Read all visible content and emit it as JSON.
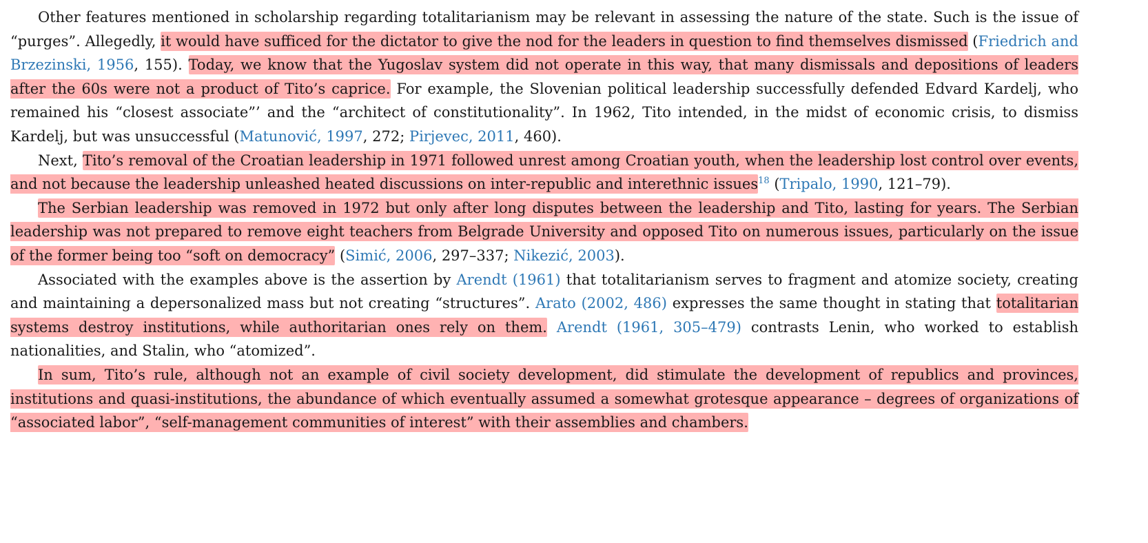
{
  "p1": {
    "s1": "Other features mentioned in scholarship regarding totalitarianism may be relevant in assessing the nature of the state. Such is the issue of “purges”. Allegedly, ",
    "h1": "it would have sufficed for the dictator to give the nod for the leaders in question to find themselves dismissed",
    "s2": " (",
    "c1": "Friedrich and Brzezinski, 1956",
    "s3": ", 155). ",
    "h2": "Today, we know that the Yugoslav system did not operate in this way, that many dismissals and depositions of leaders after the 60s were not a product of Tito’s caprice.",
    "s4": " For example, the Slovenian political leadership successfully defended Edvard Kardelj, who remained his “closest associate”’ and the “architect of constitutionality”. In 1962, Tito intended, in the midst of economic crisis, to dismiss Kardelj, but was unsuccessful (",
    "c2": "Matunović, 1997",
    "s5": ", 272; ",
    "c3": "Pirjevec, 2011",
    "s6": ", 460)."
  },
  "p2": {
    "s1": "Next, ",
    "h1": "Tito’s removal of the Croatian leadership in 1971 followed unrest among Croatian youth, when the leadership lost control over events, and not because the leadership unleashed heated discussions on inter-republic and interethnic issues",
    "fn": "18",
    "s2": " (",
    "c1": "Tripalo, 1990",
    "s3": ", 121–79)."
  },
  "p3": {
    "h1": "The Serbian leadership was removed in 1972 but only after long disputes between the leadership and Tito, lasting for years. The Serbian leadership was not prepared to remove eight teachers from Belgrade University and opposed Tito on numerous issues, particularly on the issue of the former being too “soft on democracy”",
    "s1": " (",
    "c1": "Simić, 2006",
    "s2": ", 297–337; ",
    "c2": "Nikezić, 2003",
    "s3": ")."
  },
  "p4": {
    "s1": "Associated with the examples above is the assertion by ",
    "c1": "Arendt (1961)",
    "s2": " that totalitarianism serves to fragment and atomize society, creating and maintaining a depersonalized mass but not creating “structures”. ",
    "c2": "Arato (2002, 486)",
    "s3": " expresses the same thought in stating that ",
    "h1": "totalitarian systems destroy institutions, while authoritarian ones rely on them.",
    "s4": " ",
    "c3": "Arendt (1961, 305–479)",
    "s5": " contrasts Lenin, who worked to establish nationalities, and Stalin, who “atomized”."
  },
  "p5": {
    "h1": "In sum, Tito’s rule, although not an example of civil society development, did stimulate the development of republics and provinces, institutions and quasi-institutions, the abundance of which eventually assumed a somewhat grotesque appearance – degrees of organizations of “associated labor”, “self-management communities of interest” with their as­semblies and chambers."
  },
  "colors": {
    "highlight": "#ff5555",
    "citation": "#2e78b5",
    "text": "#1a1a1a"
  }
}
